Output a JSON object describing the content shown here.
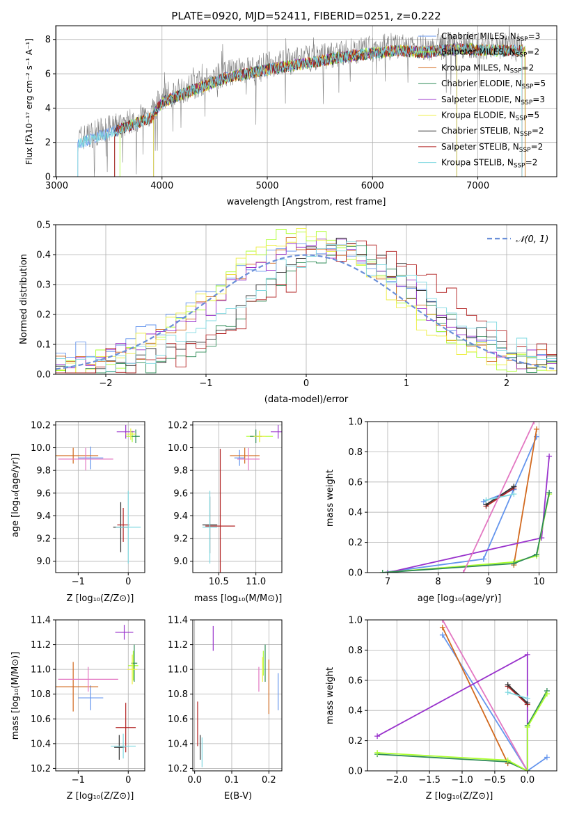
{
  "spectrum": {
    "title": "PLATE=0920, MJD=52411, FIBERID=0251, z=0.222",
    "xlabel": "wavelength [Angstrom, rest frame]",
    "ylabel": "Flux [fλ10⁻¹⁷ erg cm⁻² s⁻¹ A⁻¹]",
    "xticks": [
      "3000",
      "4000",
      "5000",
      "6000",
      "7000"
    ],
    "yticks": [
      "0",
      "2",
      "4",
      "6",
      "8"
    ],
    "legend": [
      {
        "label": "Chabrier MILES, N",
        "sub": "SSP",
        "tail": "=3",
        "color": "#6495ed"
      },
      {
        "label": "Salpeter MILES, N",
        "sub": "SSP",
        "tail": "=2",
        "color": "#adff2f"
      },
      {
        "label": "Kroupa MILES, N",
        "sub": "SSP",
        "tail": "=2",
        "color": "#d2691e"
      },
      {
        "label": "Chabrier ELODIE, N",
        "sub": "SSP",
        "tail": "=5",
        "color": "#2e8b57"
      },
      {
        "label": "Salpeter ELODIE, N",
        "sub": "SSP",
        "tail": "=3",
        "color": "#9932cc"
      },
      {
        "label": "Kroupa ELODIE, N",
        "sub": "SSP",
        "tail": "=5",
        "color": "#eeee44"
      },
      {
        "label": "Chabrier STELIB, N",
        "sub": "SSP",
        "tail": "=2",
        "color": "#333333"
      },
      {
        "label": "Salpeter STELIB, N",
        "sub": "SSP",
        "tail": "=2",
        "color": "#b22222"
      },
      {
        "label": "Kroupa STELIB, N",
        "sub": "SSP",
        "tail": "=2",
        "color": "#7fd8e0"
      }
    ]
  },
  "residuals": {
    "xlabel": "(data-model)/error",
    "ylabel": "Normed distribution",
    "xticks": [
      "−2",
      "−1",
      "0",
      "1",
      "2"
    ],
    "yticks": [
      "0.0",
      "0.1",
      "0.2",
      "0.3",
      "0.4",
      "0.5"
    ],
    "legend_label": "𝒩(0, 1)"
  },
  "panels": {
    "age_vs_z": {
      "xlabel": "Z [log₁₀(Z/Z⊙)]",
      "ylabel": "age  [log₁₀(age/yr)]",
      "xticks": [
        "−1",
        "0"
      ],
      "yticks": [
        "9.0",
        "9.2",
        "9.4",
        "9.6",
        "9.8",
        "10.0",
        "10.2"
      ]
    },
    "age_vs_mass": {
      "xlabel": "mass [log₁₀(M/M⊙)]",
      "xticks": [
        "10.5",
        "11.0"
      ],
      "yticks": [
        "9.0",
        "9.2",
        "9.4",
        "9.6",
        "9.8",
        "10.0",
        "10.2"
      ]
    },
    "weight_vs_age": {
      "xlabel": "age  [log₁₀(age/yr)]",
      "ylabel": "mass weight",
      "xticks": [
        "7",
        "8",
        "9",
        "10"
      ],
      "yticks": [
        "0.0",
        "0.2",
        "0.4",
        "0.6",
        "0.8",
        "1.0"
      ]
    },
    "mass_vs_z": {
      "xlabel": "Z [log₁₀(Z/Z⊙)]",
      "ylabel": "mass [log₁₀(M/M⊙)]",
      "xticks": [
        "−1",
        "0"
      ],
      "yticks": [
        "10.2",
        "10.4",
        "10.6",
        "10.8",
        "11.0",
        "11.2",
        "11.4"
      ]
    },
    "mass_vs_ebv": {
      "xlabel": "E(B-V)",
      "xticks": [
        "0.0",
        "0.1",
        "0.2"
      ],
      "yticks": [
        "10.2",
        "10.4",
        "10.6",
        "10.8",
        "11.0",
        "11.2",
        "11.4"
      ]
    },
    "weight_vs_z": {
      "xlabel": "Z [log₁₀(Z/Z⊙)]",
      "ylabel": "mass weight",
      "xticks": [
        "−2.0",
        "−1.5",
        "−1.0",
        "−0.5",
        "0.0"
      ],
      "yticks": [
        "0.0",
        "0.2",
        "0.4",
        "0.6",
        "0.8",
        "1.0"
      ]
    }
  },
  "chart_data": [
    {
      "type": "line",
      "title": "PLATE=0920, MJD=52411, FIBERID=0251, z=0.222",
      "xlim": [
        2990,
        7750
      ],
      "ylim": [
        0,
        8.8
      ],
      "continuum": {
        "x": [
          3200,
          3600,
          3900,
          4000,
          4300,
          4600,
          5000,
          5400,
          5800,
          6200,
          6500,
          6800,
          7200,
          7400
        ],
        "y": [
          2.2,
          3.0,
          3.7,
          4.6,
          5.3,
          6.0,
          6.5,
          6.9,
          7.3,
          7.6,
          7.5,
          7.7,
          7.6,
          7.6
        ]
      }
    },
    {
      "type": "line",
      "name": "N(0,1)",
      "xlim": [
        -2.5,
        2.5
      ],
      "ylim": [
        0,
        0.5
      ],
      "hist_edges_from": -2.5,
      "hist_edges_to": 2.5,
      "bin_width": 0.1,
      "series": [
        {
          "color": "#6495ed",
          "center": 0.0,
          "peak": 0.4,
          "sigma": 1.0,
          "tail": 0.05
        },
        {
          "color": "#adff2f",
          "center": 0.0,
          "peak": 0.45,
          "sigma": 0.85,
          "tail": 0.03
        },
        {
          "color": "#d2691e",
          "center": 0.05,
          "peak": 0.42,
          "sigma": 0.9,
          "tail": 0.04
        },
        {
          "color": "#2e8b57",
          "center": 0.35,
          "peak": 0.4,
          "sigma": 0.8,
          "tail": 0.02
        },
        {
          "color": "#9932cc",
          "center": 0.1,
          "peak": 0.42,
          "sigma": 0.9,
          "tail": 0.05
        },
        {
          "color": "#eeee44",
          "center": -0.05,
          "peak": 0.44,
          "sigma": 0.85,
          "tail": 0.04
        },
        {
          "color": "#333333",
          "center": 0.35,
          "peak": 0.4,
          "sigma": 0.85,
          "tail": 0.04
        },
        {
          "color": "#b22222",
          "center": 0.55,
          "peak": 0.4,
          "sigma": 0.85,
          "tail": 0.06
        },
        {
          "color": "#7fd8e0",
          "center": 0.35,
          "peak": 0.38,
          "sigma": 0.9,
          "tail": 0.06
        }
      ]
    },
    {
      "type": "scatter",
      "name": "age vs Z",
      "xlim": [
        -1.45,
        0.33
      ],
      "ylim": [
        8.9,
        10.23
      ],
      "points": [
        {
          "color": "#6495ed",
          "x": -0.75,
          "y": 9.91,
          "xerr": 0.25,
          "yerr": 0.1
        },
        {
          "color": "#adff2f",
          "x": 0.08,
          "y": 10.1,
          "xerr": 0.12,
          "yerr": 0.05
        },
        {
          "color": "#d2691e",
          "x": -1.1,
          "y": 9.93,
          "xerr": 0.5,
          "yerr": 0.07
        },
        {
          "color": "#2e8b57",
          "x": 0.15,
          "y": 10.1,
          "xerr": 0.08,
          "yerr": 0.06
        },
        {
          "color": "#9932cc",
          "x": -0.05,
          "y": 10.14,
          "xerr": 0.18,
          "yerr": 0.06
        },
        {
          "color": "#eeee44",
          "x": 0.05,
          "y": 10.12,
          "xerr": 0.1,
          "yerr": 0.05
        },
        {
          "color": "#333333",
          "x": -0.15,
          "y": 9.3,
          "xerr": 0.15,
          "yerr": 0.22
        },
        {
          "color": "#b22222",
          "x": -0.1,
          "y": 9.32,
          "xerr": 0.12,
          "yerr": 0.15
        },
        {
          "color": "#7fd8e0",
          "x": 0.0,
          "y": 9.3,
          "xerr": 0.25,
          "yerr": 0.32
        },
        {
          "color": "#e377c2",
          "x": -0.85,
          "y": 9.9,
          "xerr": 0.55,
          "yerr": 0.1
        }
      ]
    },
    {
      "type": "scatter",
      "name": "age vs mass",
      "xlim": [
        10.15,
        11.35
      ],
      "ylim": [
        8.9,
        10.23
      ],
      "points": [
        {
          "color": "#6495ed",
          "x": 10.78,
          "y": 9.91,
          "xerr": 0.07,
          "yerr": 0.07
        },
        {
          "color": "#adff2f",
          "x": 11.05,
          "y": 10.1,
          "xerr": 0.18,
          "yerr": 0.05
        },
        {
          "color": "#d2691e",
          "x": 10.85,
          "y": 9.93,
          "xerr": 0.2,
          "yerr": 0.07
        },
        {
          "color": "#2e8b57",
          "x": 11.0,
          "y": 10.1,
          "xerr": 0.08,
          "yerr": 0.06
        },
        {
          "color": "#9932cc",
          "x": 11.3,
          "y": 10.14,
          "xerr": 0.1,
          "yerr": 0.06
        },
        {
          "color": "#eeee44",
          "x": 11.05,
          "y": 10.1,
          "xerr": 0.08,
          "yerr": 0.05
        },
        {
          "color": "#333333",
          "x": 10.38,
          "y": 9.32,
          "xerr": 0.1,
          "yerr": 0.25
        },
        {
          "color": "#b22222",
          "x": 10.52,
          "y": 9.31,
          "xerr": 0.2,
          "yerr": 0.68
        },
        {
          "color": "#7fd8e0",
          "x": 10.38,
          "y": 9.3,
          "xerr": 0.1,
          "yerr": 0.32
        },
        {
          "color": "#e377c2",
          "x": 10.9,
          "y": 9.9,
          "xerr": 0.15,
          "yerr": 0.1
        }
      ]
    },
    {
      "type": "line",
      "name": "mass weight vs age",
      "xlim": [
        6.6,
        10.35
      ],
      "ylim": [
        0,
        1
      ],
      "series": [
        {
          "color": "#6495ed",
          "x": [
            6.9,
            8.9,
            9.95
          ],
          "y": [
            0.0,
            0.09,
            0.9
          ]
        },
        {
          "color": "#6495ed",
          "x": [
            8.9,
            9.5
          ],
          "y": [
            0.47,
            0.55
          ]
        },
        {
          "color": "#d2691e",
          "x": [
            9.5,
            9.95
          ],
          "y": [
            0.05,
            0.95
          ]
        },
        {
          "color": "#9932cc",
          "x": [
            7.0,
            10.05,
            10.2
          ],
          "y": [
            0.0,
            0.23,
            0.77
          ]
        },
        {
          "color": "#adff2f",
          "x": [
            6.9,
            9.5,
            9.95,
            10.2
          ],
          "y": [
            0.0,
            0.07,
            0.11,
            0.52
          ]
        },
        {
          "color": "#2e8b57",
          "x": [
            6.9,
            9.5,
            9.95,
            10.2
          ],
          "y": [
            0.0,
            0.06,
            0.12,
            0.53
          ]
        },
        {
          "color": "#b22222",
          "x": [
            8.95,
            9.5
          ],
          "y": [
            0.44,
            0.56
          ]
        },
        {
          "color": "#333333",
          "x": [
            8.95,
            9.5
          ],
          "y": [
            0.45,
            0.57
          ]
        },
        {
          "color": "#7fd8e0",
          "x": [
            8.95,
            9.5
          ],
          "y": [
            0.48,
            0.52
          ]
        },
        {
          "color": "#e377c2",
          "x": [
            8.5,
            9.9
          ],
          "y": [
            0.0,
            1.0
          ]
        }
      ]
    },
    {
      "type": "scatter",
      "name": "mass vs Z",
      "xlim": [
        -1.45,
        0.33
      ],
      "ylim": [
        10.18,
        11.4
      ],
      "points": [
        {
          "color": "#6495ed",
          "x": -0.75,
          "y": 10.77,
          "xerr": 0.25,
          "yerr": 0.1
        },
        {
          "color": "#adff2f",
          "x": 0.1,
          "y": 11.03,
          "xerr": 0.1,
          "yerr": 0.12
        },
        {
          "color": "#d2691e",
          "x": -1.1,
          "y": 10.86,
          "xerr": 0.5,
          "yerr": 0.2
        },
        {
          "color": "#2e8b57",
          "x": 0.12,
          "y": 11.05,
          "xerr": 0.06,
          "yerr": 0.15
        },
        {
          "color": "#9932cc",
          "x": -0.08,
          "y": 11.3,
          "xerr": 0.18,
          "yerr": 0.06
        },
        {
          "color": "#eeee44",
          "x": 0.08,
          "y": 11.0,
          "xerr": 0.1,
          "yerr": 0.12
        },
        {
          "color": "#333333",
          "x": -0.18,
          "y": 10.37,
          "xerr": 0.1,
          "yerr": 0.1
        },
        {
          "color": "#b22222",
          "x": -0.05,
          "y": 10.53,
          "xerr": 0.2,
          "yerr": 0.2
        },
        {
          "color": "#7fd8e0",
          "x": -0.1,
          "y": 10.38,
          "xerr": 0.25,
          "yerr": 0.1
        },
        {
          "color": "#e377c2",
          "x": -0.8,
          "y": 10.92,
          "xerr": 0.6,
          "yerr": 0.1
        }
      ]
    },
    {
      "type": "scatter",
      "name": "mass vs E(B-V)",
      "xlim": [
        -0.005,
        0.235
      ],
      "ylim": [
        10.18,
        11.4
      ],
      "points": [
        {
          "color": "#6495ed",
          "x": 0.225,
          "y": 10.82,
          "xerr": 0,
          "yerr": 0.15
        },
        {
          "color": "#adff2f",
          "x": 0.185,
          "y": 11.05,
          "xerr": 0,
          "yerr": 0.1
        },
        {
          "color": "#d2691e",
          "x": 0.2,
          "y": 10.86,
          "xerr": 0,
          "yerr": 0.22
        },
        {
          "color": "#2e8b57",
          "x": 0.19,
          "y": 11.05,
          "xerr": 0,
          "yerr": 0.15
        },
        {
          "color": "#9932cc",
          "x": 0.05,
          "y": 11.25,
          "xerr": 0,
          "yerr": 0.1
        },
        {
          "color": "#eeee44",
          "x": 0.183,
          "y": 11.0,
          "xerr": 0,
          "yerr": 0.1
        },
        {
          "color": "#333333",
          "x": 0.015,
          "y": 10.37,
          "xerr": 0,
          "yerr": 0.1
        },
        {
          "color": "#b22222",
          "x": 0.008,
          "y": 10.56,
          "xerr": 0,
          "yerr": 0.18
        },
        {
          "color": "#7fd8e0",
          "x": 0.02,
          "y": 10.33,
          "xerr": 0,
          "yerr": 0.12
        },
        {
          "color": "#e377c2",
          "x": 0.173,
          "y": 10.92,
          "xerr": 0,
          "yerr": 0.1
        }
      ]
    },
    {
      "type": "line",
      "name": "mass weight vs Z",
      "xlim": [
        -2.45,
        0.45
      ],
      "ylim": [
        0,
        1
      ],
      "series": [
        {
          "color": "#6495ed",
          "x": [
            -1.3,
            0.0,
            0.3
          ],
          "y": [
            0.9,
            0.0,
            0.09
          ]
        },
        {
          "color": "#d2691e",
          "x": [
            -1.3,
            -0.3
          ],
          "y": [
            0.95,
            0.05
          ]
        },
        {
          "color": "#e377c2",
          "x": [
            -1.3,
            0.0
          ],
          "y": [
            1.0,
            0.0
          ]
        },
        {
          "color": "#9932cc",
          "x": [
            -2.3,
            0.0,
            0.0
          ],
          "y": [
            0.23,
            0.77,
            0.0
          ]
        },
        {
          "color": "#2e8b57",
          "x": [
            -2.3,
            -0.3,
            0.0,
            0.0,
            0.3
          ],
          "y": [
            0.11,
            0.06,
            0.0,
            0.3,
            0.53
          ]
        },
        {
          "color": "#adff2f",
          "x": [
            -2.3,
            -0.3,
            0.0,
            0.0,
            0.3
          ],
          "y": [
            0.12,
            0.07,
            0.0,
            0.29,
            0.51
          ]
        },
        {
          "color": "#b22222",
          "x": [
            -0.3,
            0.0
          ],
          "y": [
            0.56,
            0.44
          ]
        },
        {
          "color": "#333333",
          "x": [
            -0.3,
            0.0
          ],
          "y": [
            0.57,
            0.45
          ]
        },
        {
          "color": "#7fd8e0",
          "x": [
            -0.3,
            0.0
          ],
          "y": [
            0.52,
            0.48
          ]
        }
      ]
    }
  ]
}
